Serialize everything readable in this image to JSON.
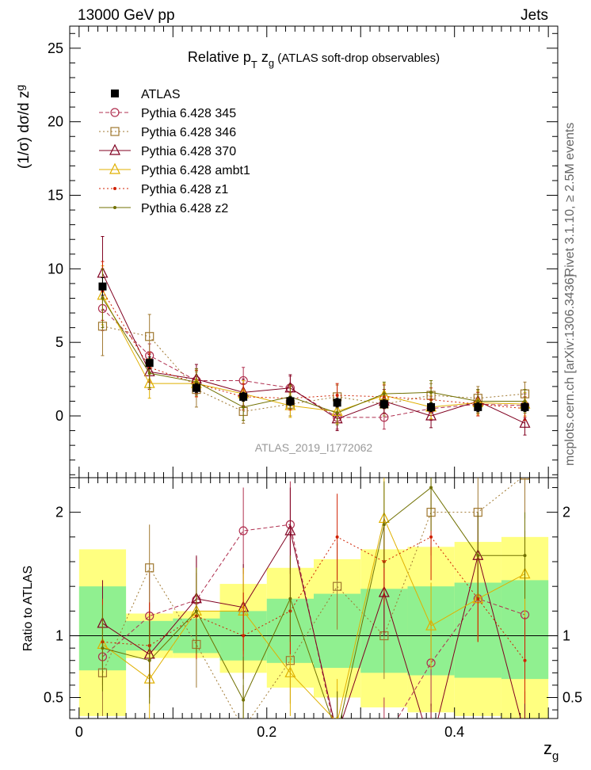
{
  "header": {
    "left": "13000 GeV pp",
    "right": "Jets"
  },
  "side_labels": {
    "top": "Rivet 3.1.10, ≥ 2.5M events",
    "bottom": "mcplots.cern.ch [arXiv:1306.3436]"
  },
  "watermark": "ATLAS_2019_I1772062",
  "chart_data": [
    {
      "type": "line",
      "title": "Relative p_T z_g (ATLAS soft-drop observables)",
      "title_parts": {
        "a": "Relative p",
        "b": "T",
        "c": " z",
        "d": "g",
        "e": " (ATLAS soft-drop observables)"
      },
      "ylabel": "(1/σ) dσ/d z_g",
      "ylabel_parts": {
        "a": "(1/σ) dσ/d z",
        "b": "g"
      },
      "xlabel": "z_g",
      "xlabel_parts": {
        "a": "z",
        "b": "g"
      },
      "xlim": [
        -0.01,
        0.51
      ],
      "ylim": [
        -4.2,
        26.5
      ],
      "legend_position": "top-left",
      "x": [
        0.025,
        0.075,
        0.125,
        0.175,
        0.225,
        0.275,
        0.325,
        0.375,
        0.425,
        0.475
      ],
      "xticks": [
        "0",
        "0.2",
        "0.4"
      ],
      "yticks": [
        "0",
        "5",
        "10",
        "15",
        "20",
        "25"
      ],
      "series": [
        {
          "name": "ATLAS",
          "color": "#000000",
          "marker": "square",
          "values": [
            8.8,
            3.6,
            1.9,
            1.3,
            1.0,
            0.9,
            0.8,
            0.6,
            0.6,
            0.6
          ],
          "errors": [
            0.6,
            0.4,
            0.3,
            0.3,
            0.3,
            0.3,
            0.3,
            0.3,
            0.3,
            0.3
          ]
        },
        {
          "name": "Pythia 6.428 345",
          "color": "#b03050",
          "marker": "circle",
          "dash": "5,3",
          "values": [
            7.3,
            4.1,
            2.4,
            2.4,
            1.9,
            -0.1,
            -0.1,
            0.5,
            0.8,
            0.7
          ],
          "errors": [
            1.5,
            0.8,
            0.8,
            0.9,
            0.8,
            0.8,
            0.8,
            0.8,
            0.8,
            0.8
          ]
        },
        {
          "name": "Pythia 6.428 346",
          "color": "#a07830",
          "marker": "square_open",
          "dash": "2,3",
          "values": [
            6.1,
            5.4,
            1.8,
            0.3,
            0.8,
            1.3,
            0.8,
            1.4,
            1.2,
            1.5
          ],
          "errors": [
            2.0,
            1.5,
            1.2,
            0.8,
            0.8,
            0.8,
            0.8,
            0.8,
            0.8,
            0.8
          ]
        },
        {
          "name": "Pythia 6.428 370",
          "color": "#800020",
          "marker": "triangle",
          "dash": "",
          "values": [
            9.7,
            3.0,
            2.5,
            1.6,
            1.9,
            -0.2,
            1.0,
            0.0,
            1.0,
            -0.5
          ],
          "errors": [
            2.5,
            1.2,
            1.0,
            0.9,
            0.9,
            0.8,
            0.8,
            0.8,
            0.8,
            0.8
          ]
        },
        {
          "name": "Pythia 6.428 ambt1",
          "color": "#e0b000",
          "marker": "triangle",
          "dash": "",
          "values": [
            8.2,
            2.2,
            2.2,
            1.5,
            0.7,
            0.3,
            1.4,
            0.6,
            0.9,
            0.8
          ],
          "errors": [
            2.0,
            1.0,
            0.9,
            0.9,
            0.8,
            0.8,
            0.8,
            0.8,
            0.8,
            0.8
          ]
        },
        {
          "name": "Pythia 6.428 z1",
          "color": "#d02000",
          "marker": "dot",
          "dash": "2,3",
          "values": [
            8.5,
            3.3,
            2.2,
            1.3,
            1.2,
            1.4,
            1.3,
            1.1,
            0.8,
            0.5
          ],
          "errors": [
            2.0,
            1.0,
            0.9,
            0.9,
            0.8,
            0.8,
            0.8,
            0.8,
            0.8,
            0.8
          ]
        },
        {
          "name": "Pythia 6.428 z2",
          "color": "#707000",
          "marker": "dot",
          "dash": "",
          "values": [
            8.0,
            2.9,
            2.3,
            0.6,
            1.3,
            0.2,
            1.5,
            1.6,
            1.0,
            1.0
          ],
          "errors": [
            2.0,
            1.0,
            0.9,
            0.9,
            0.8,
            0.8,
            0.8,
            0.8,
            0.8,
            0.8
          ]
        }
      ]
    },
    {
      "type": "line",
      "ylabel": "Ratio to ATLAS",
      "ylim": [
        0.33,
        2.28
      ],
      "yticks": [
        "0.5",
        "1",
        "2"
      ],
      "bands": {
        "inner": [
          [
            0.72,
            1.4
          ],
          [
            0.88,
            1.12
          ],
          [
            0.86,
            1.14
          ],
          [
            0.8,
            1.2
          ],
          [
            0.78,
            1.3
          ],
          [
            0.74,
            1.34
          ],
          [
            0.7,
            1.38
          ],
          [
            0.68,
            1.4
          ],
          [
            0.66,
            1.43
          ],
          [
            0.65,
            1.45
          ]
        ],
        "outer": [
          [
            0.35,
            1.7
          ],
          [
            0.82,
            1.18
          ],
          [
            0.82,
            1.2
          ],
          [
            0.7,
            1.42
          ],
          [
            0.58,
            1.55
          ],
          [
            0.5,
            1.62
          ],
          [
            0.42,
            1.7
          ],
          [
            0.38,
            1.72
          ],
          [
            0.35,
            1.76
          ],
          [
            0.33,
            1.8
          ]
        ]
      },
      "series": [
        {
          "name": "Pythia 6.428 345",
          "values": [
            0.83,
            1.16,
            1.29,
            1.85,
            1.9,
            0.15,
            0.15,
            0.78,
            1.3,
            1.17
          ]
        },
        {
          "name": "Pythia 6.428 346",
          "values": [
            0.7,
            1.55,
            0.93,
            0.25,
            0.8,
            1.4,
            1.0,
            2.0,
            2.0,
            2.3
          ]
        },
        {
          "name": "Pythia 6.428 370",
          "values": [
            1.1,
            0.85,
            1.3,
            1.23,
            1.85,
            0.2,
            1.35,
            0.1,
            1.65,
            0.2
          ]
        },
        {
          "name": "Pythia 6.428 ambt1",
          "values": [
            0.93,
            0.65,
            1.2,
            1.2,
            0.7,
            0.3,
            1.95,
            1.08,
            1.3,
            1.5
          ]
        },
        {
          "name": "Pythia 6.428 z1",
          "values": [
            0.95,
            0.92,
            1.16,
            1.0,
            1.2,
            1.8,
            1.6,
            1.8,
            1.3,
            0.8
          ]
        },
        {
          "name": "Pythia 6.428 z2",
          "values": [
            0.9,
            0.8,
            1.2,
            0.48,
            1.3,
            0.2,
            1.9,
            2.2,
            1.65,
            1.65
          ]
        }
      ]
    }
  ]
}
